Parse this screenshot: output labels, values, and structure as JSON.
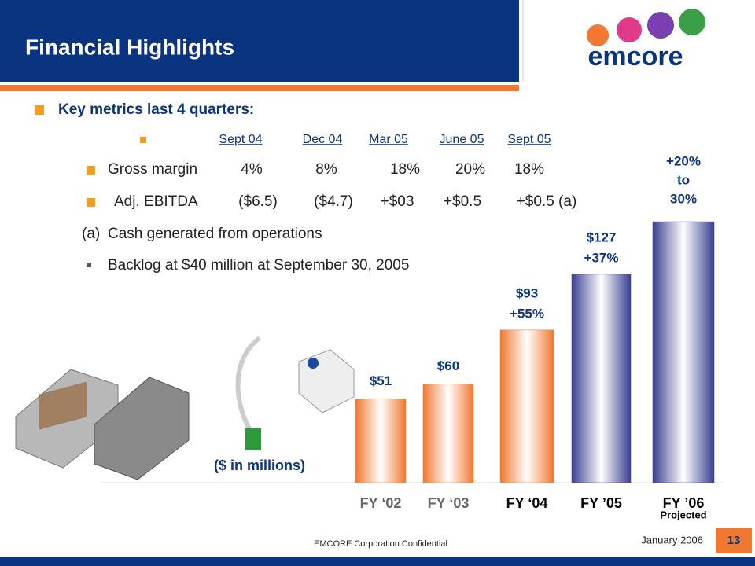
{
  "header": {
    "title": "Financial Highlights",
    "logo": "emcore"
  },
  "heading": "Key metrics last 4 quarters:",
  "metrics_table": {
    "columns": [
      "Sept 04",
      "Dec 04",
      "Mar 05",
      "June 05",
      "Sept 05"
    ],
    "rows": [
      {
        "label": "Gross margin",
        "cells": [
          "4%",
          "8%",
          "18%",
          "20%",
          "18%"
        ]
      },
      {
        "label": "Adj. EBITDA",
        "cells": [
          "($6.5)",
          "($4.7)",
          "+$03",
          "+$0.5",
          "+$0.5 (a)"
        ]
      }
    ]
  },
  "notes": [
    {
      "marker": "(a)",
      "text": "Cash generated from operations"
    },
    {
      "text": "Backlog at $40 million at September 30, 2005"
    }
  ],
  "chart_data": {
    "type": "bar",
    "unit_label": "($ in millions)",
    "categories": [
      "FY ‘02",
      "FY ‘03",
      "FY ‘04",
      "FY ’05",
      "FY ’06"
    ],
    "category_note": "Projected",
    "values": [
      51,
      60,
      93,
      127,
      159
    ],
    "value_labels": [
      "$51",
      "$60",
      "$93",
      "$127",
      null
    ],
    "growth_labels": [
      null,
      null,
      "+55%",
      "+37%",
      [
        "+20%",
        "to",
        "30%"
      ]
    ],
    "colors": [
      "#f07830",
      "#f07830",
      "#f07830",
      "#3a3f8f",
      "#3a3f8f"
    ],
    "ylim": [
      0,
      160
    ]
  },
  "footer": {
    "confidential": "EMCORE Corporation Confidential",
    "date": "January 2006",
    "page": "13"
  }
}
